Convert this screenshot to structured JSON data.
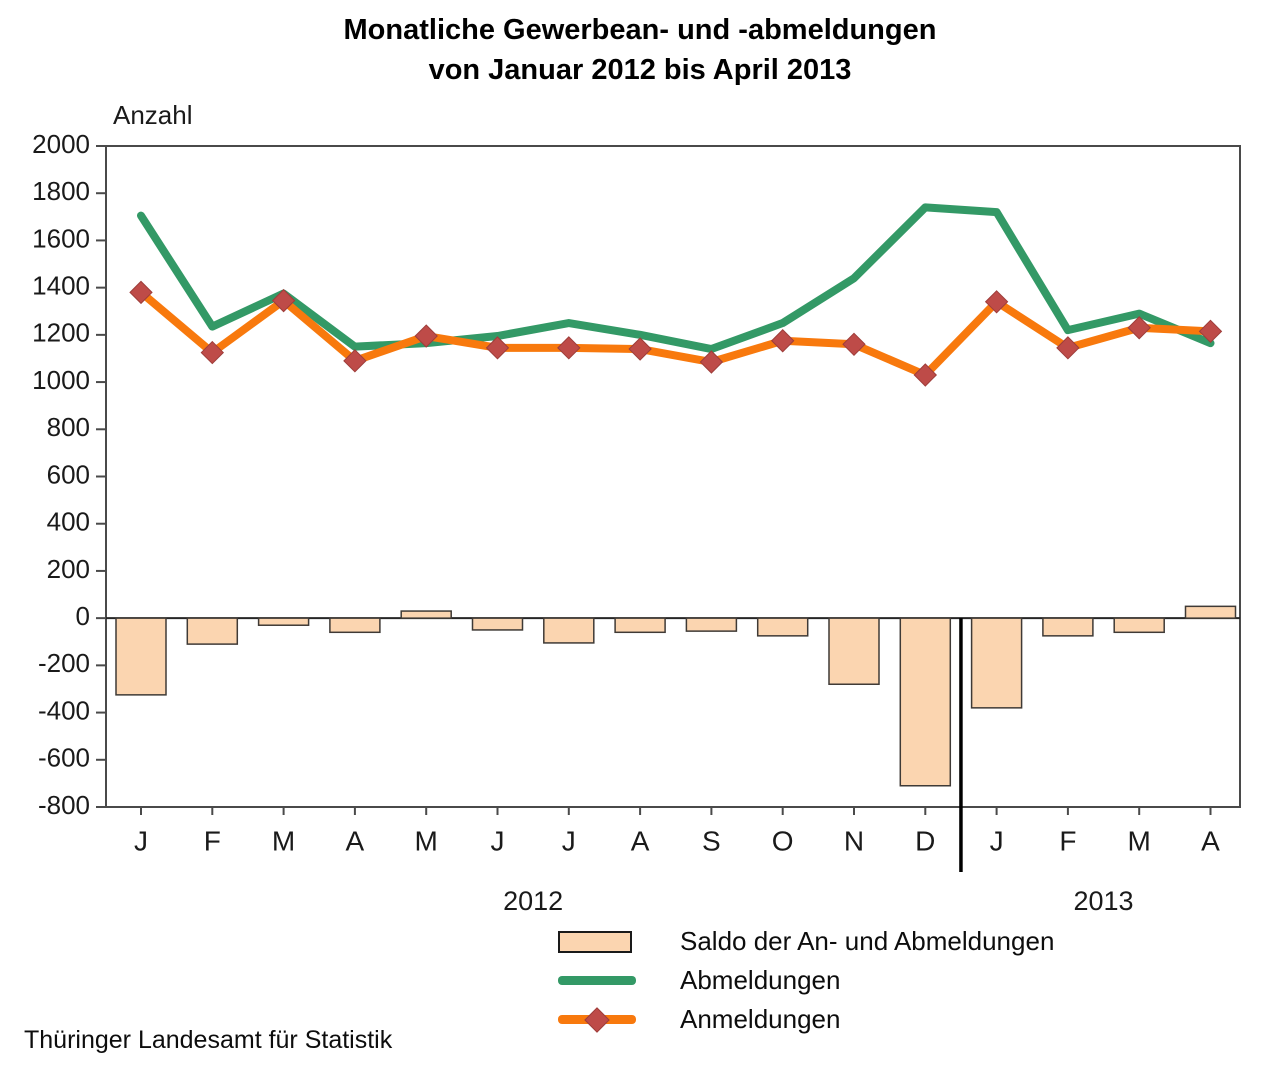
{
  "title": {
    "line1": "Monatliche Gewerbean- und -abmeldungen",
    "line2": "von Januar 2012 bis April 2013"
  },
  "y_axis_label": "Anzahl",
  "footer": "Thüringer Landesamt für Statistik",
  "legend": {
    "saldo_label": "Saldo der An- und Abmeldungen",
    "abmeldungen_label": "Abmeldungen",
    "anmeldungen_label": "Anmeldungen"
  },
  "colors": {
    "green": "#339966",
    "orange": "#F8790D",
    "diamond": "#BE4B48",
    "bar_fill": "#FBD5B0",
    "bar_border": "#3F3A36",
    "axis": "#4a4a4a",
    "zero_line": "#262626",
    "divider": "#000000",
    "text": "#1a1a1a"
  },
  "chart_data": {
    "type": "bar+line combo",
    "title": "Monatliche Gewerbean- und -abmeldungen von Januar 2012 bis April 2013",
    "ylabel": "Anzahl",
    "ylim": [
      -800,
      2000
    ],
    "ytick_step": 200,
    "grid": false,
    "legend_position": "bottom",
    "categories": [
      "J",
      "F",
      "M",
      "A",
      "M",
      "J",
      "J",
      "A",
      "S",
      "O",
      "N",
      "D",
      "J",
      "F",
      "M",
      "A"
    ],
    "year_groups": [
      {
        "label": "2012",
        "start": 0,
        "end": 11
      },
      {
        "label": "2013",
        "start": 12,
        "end": 15
      }
    ],
    "series": [
      {
        "name": "Saldo der An- und Abmeldungen",
        "type": "bar",
        "values": [
          -325,
          -110,
          -30,
          -60,
          30,
          -50,
          -105,
          -60,
          -55,
          -75,
          -280,
          -710,
          -380,
          -75,
          -60,
          50
        ]
      },
      {
        "name": "Abmeldungen",
        "type": "line",
        "values": [
          1705,
          1235,
          1375,
          1150,
          1165,
          1195,
          1250,
          1200,
          1140,
          1250,
          1440,
          1740,
          1720,
          1220,
          1290,
          1165
        ]
      },
      {
        "name": "Anmeldungen",
        "type": "line-diamond",
        "values": [
          1380,
          1125,
          1345,
          1090,
          1195,
          1145,
          1145,
          1140,
          1085,
          1175,
          1160,
          1030,
          1340,
          1145,
          1230,
          1215
        ]
      }
    ]
  }
}
